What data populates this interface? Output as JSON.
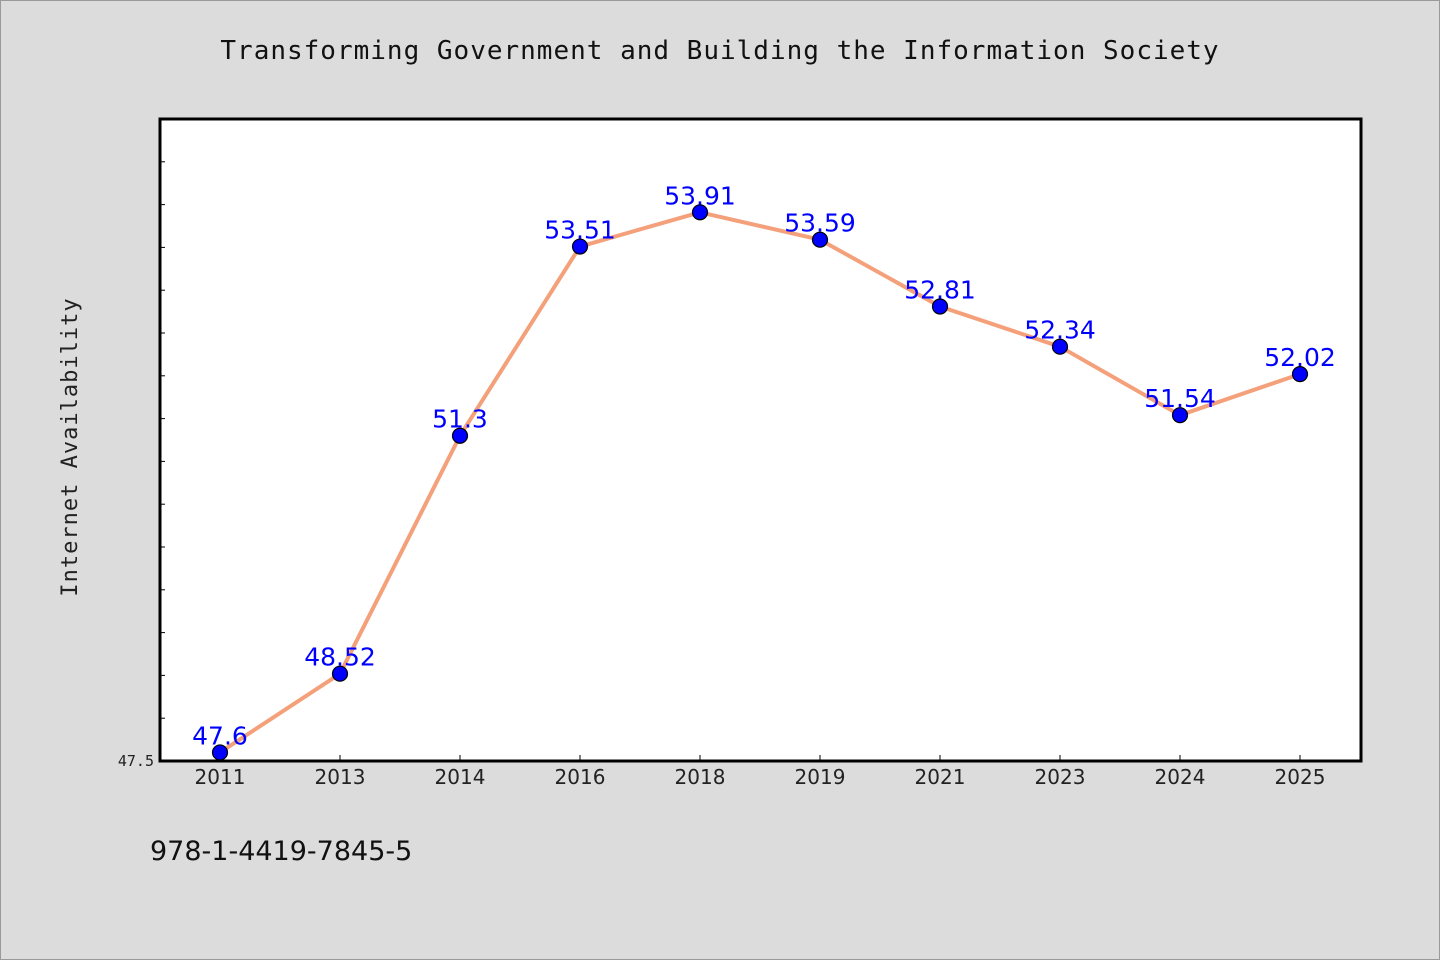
{
  "title": "Transforming Government and Building the Information Society",
  "footer": {
    "isbn": "978-1-4419-7845-5"
  },
  "chart_data": {
    "type": "line",
    "title": "Transforming Government and Building the Information Society",
    "xlabel": "",
    "ylabel": "Internet Availability",
    "categories": [
      "2011",
      "2013",
      "2014",
      "2016",
      "2018",
      "2019",
      "2021",
      "2023",
      "2024",
      "2025"
    ],
    "series": [
      {
        "values": [
          47.6,
          48.52,
          51.3,
          53.51,
          53.91,
          53.59,
          52.81,
          52.34,
          51.54,
          52.02
        ],
        "labels": [
          "47.6",
          "48.52",
          "51.3",
          "53.51",
          "53.91",
          "53.59",
          "52.81",
          "52.34",
          "51.54",
          "52.02"
        ],
        "line_color": "#f4a07a",
        "marker_color": "#0000ff"
      }
    ],
    "ylim": [
      47.5,
      55.0
    ],
    "ytick_labels": [
      "47.5"
    ],
    "grid": false,
    "legend": "none",
    "colors": {
      "line": "#f4a07a",
      "marker": "#0000ff",
      "label_text": "#0000ff",
      "background": "#dcdcdc",
      "plot_background": "#ffffff"
    }
  }
}
